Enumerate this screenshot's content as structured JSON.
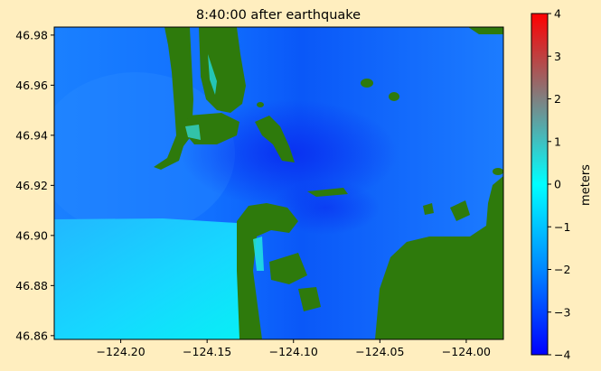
{
  "chart_data": {
    "type": "heatmap",
    "title": "8:40:00 after earthquake",
    "xlabel": "",
    "ylabel": "",
    "x_ticks": [
      -124.2,
      -124.15,
      -124.1,
      -124.05,
      -124.0
    ],
    "x_tick_labels": [
      "−124.20",
      "−124.15",
      "−124.10",
      "−124.05",
      "−124.00"
    ],
    "y_ticks": [
      46.86,
      46.88,
      46.9,
      46.92,
      46.94,
      46.96,
      46.98
    ],
    "y_tick_labels": [
      "46.86",
      "46.88",
      "46.90",
      "46.92",
      "46.94",
      "46.96",
      "46.98"
    ],
    "xlim": [
      -124.2385,
      -123.9785
    ],
    "ylim": [
      46.8585,
      46.9832
    ],
    "colorbar": {
      "label": "meters",
      "vmin": -4,
      "vmax": 4,
      "ticks": [
        -4,
        -3,
        -2,
        -1,
        0,
        1,
        2,
        3,
        4
      ],
      "tick_labels": [
        "−4",
        "−3",
        "−2",
        "−1",
        "0",
        "1",
        "2",
        "3",
        "4"
      ],
      "colormap": [
        "#0000ff",
        "#0087ff",
        "#00ffff",
        "#808080",
        "#ff0000"
      ]
    },
    "land_color": "#2e7a0c",
    "field_summary": "sea surface elevation mostly between -3 and 0 meters; land masked"
  }
}
